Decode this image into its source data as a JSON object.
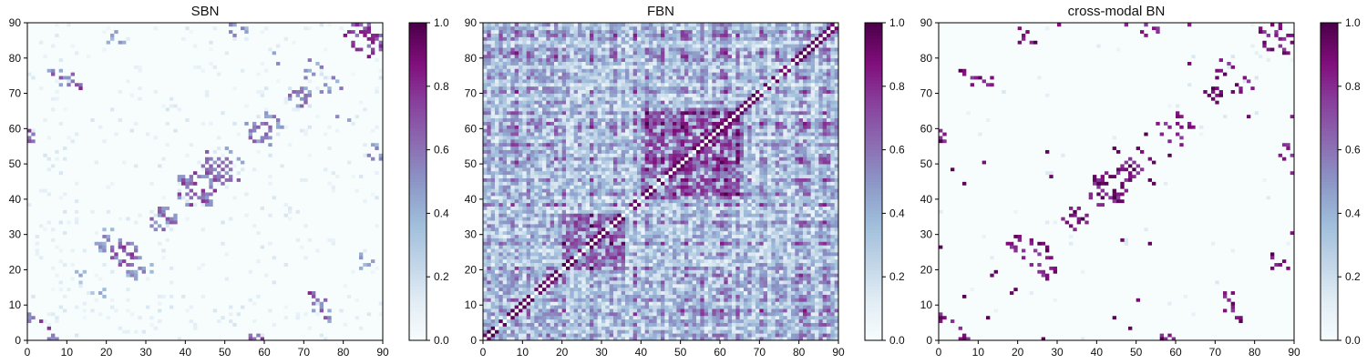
{
  "chart_data": [
    {
      "type": "heatmap",
      "title": "SBN",
      "xlabel": "",
      "ylabel": "",
      "xlim": [
        0,
        90
      ],
      "ylim": [
        0,
        90
      ],
      "x_ticks": [
        0,
        10,
        20,
        30,
        40,
        50,
        60,
        70,
        80,
        90
      ],
      "y_ticks": [
        0,
        10,
        20,
        30,
        40,
        50,
        60,
        70,
        80,
        90
      ],
      "grid_size": 90,
      "colorbar": {
        "min": 0.0,
        "max": 1.0,
        "ticks": [
          "0.0",
          "0.2",
          "0.4",
          "0.6",
          "0.8",
          "1.0"
        ]
      },
      "colormap": [
        "#f7fcfd",
        "#e0ecf4",
        "#bfd3e6",
        "#9ebcda",
        "#8c96c6",
        "#8c6bb1",
        "#88419d",
        "#810f7c",
        "#4d004b"
      ],
      "description": "Sparse symmetric matrix: near-zero background with scattered strong links clustered around blocks (e.g. near 10-15,72-74; 20-30,20-30; 40-60,40-60; 55-60,55-65; 80-90,80-90)."
    },
    {
      "type": "heatmap",
      "title": "FBN",
      "xlabel": "",
      "ylabel": "",
      "xlim": [
        0,
        90
      ],
      "ylim": [
        0,
        90
      ],
      "x_ticks": [
        0,
        10,
        20,
        30,
        40,
        50,
        60,
        70,
        80,
        90
      ],
      "y_ticks": [
        0,
        10,
        20,
        30,
        40,
        50,
        60,
        70,
        80,
        90
      ],
      "grid_size": 90,
      "colorbar": {
        "min": 0.0,
        "max": 1.0,
        "ticks": [
          "0.0",
          "0.2",
          "0.4",
          "0.6",
          "0.8",
          "1.0"
        ]
      },
      "colormap": [
        "#f7fcfd",
        "#e0ecf4",
        "#bfd3e6",
        "#9ebcda",
        "#8c96c6",
        "#8c6bb1",
        "#88419d",
        "#810f7c",
        "#4d004b"
      ],
      "description": "Dense symmetric matrix with many moderate-to-strong values, strong diagonal band and large dense blocks around 20-35 and 40-65."
    },
    {
      "type": "heatmap",
      "title": "cross-modal BN",
      "xlabel": "",
      "ylabel": "",
      "xlim": [
        0,
        90
      ],
      "ylim": [
        0,
        90
      ],
      "x_ticks": [
        0,
        10,
        20,
        30,
        40,
        50,
        60,
        70,
        80,
        90
      ],
      "y_ticks": [
        0,
        10,
        20,
        30,
        40,
        50,
        60,
        70,
        80,
        90
      ],
      "grid_size": 90,
      "colorbar": {
        "min": 0.0,
        "max": 1.0,
        "ticks": [
          "0.0",
          "0.2",
          "0.4",
          "0.6",
          "0.8",
          "1.0"
        ]
      },
      "colormap": [
        "#f7fcfd",
        "#e0ecf4",
        "#bfd3e6",
        "#9ebcda",
        "#8c96c6",
        "#8c6bb1",
        "#88419d",
        "#810f7c",
        "#4d004b"
      ],
      "description": "Very sparse symmetric matrix, mostly near-zero with scattered strong links resembling SBN pattern but sparser."
    }
  ]
}
